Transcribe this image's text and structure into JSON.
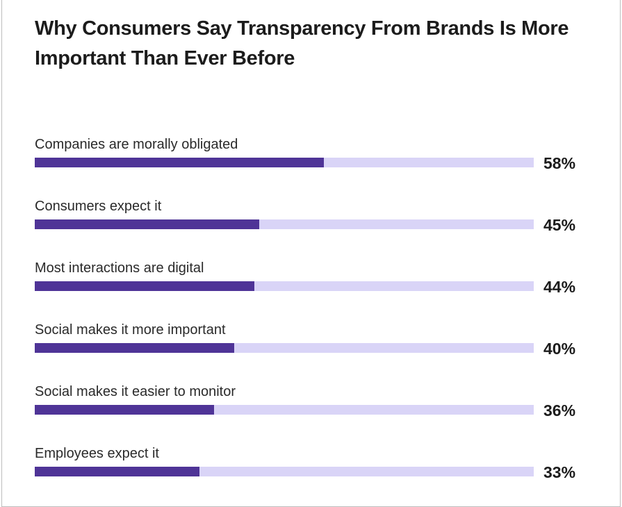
{
  "chart_data": {
    "type": "bar",
    "orientation": "horizontal",
    "title": "Why Consumers Say Transparency From Brands Is More Important Than Ever Before",
    "categories": [
      "Companies are morally obligated",
      "Consumers expect it",
      "Most interactions are digital",
      "Social makes it more important",
      "Social makes it easier to monitor",
      "Employees expect it"
    ],
    "values": [
      58,
      45,
      44,
      40,
      36,
      33
    ],
    "value_labels": [
      "58%",
      "45%",
      "44%",
      "40%",
      "36%",
      "33%"
    ],
    "xlim": [
      0,
      100
    ],
    "grid": false,
    "colors": {
      "bar": "#4f3497",
      "track": "#d9d4f7"
    }
  }
}
